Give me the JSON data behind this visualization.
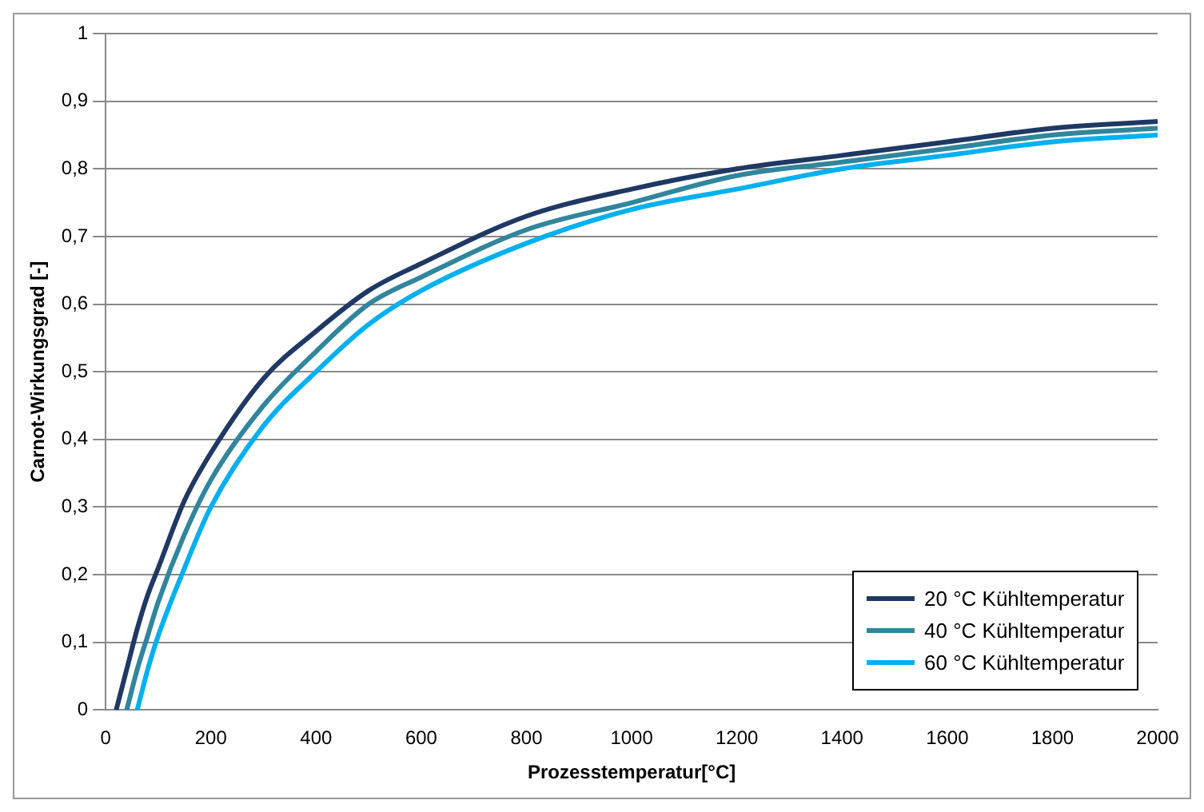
{
  "chart_data": {
    "type": "line",
    "xlabel": "Prozesstemperatur[°C]",
    "ylabel": "Carnot-Wirkungsgrad [-]",
    "xlim": [
      0,
      2000
    ],
    "xticks": [
      0,
      200,
      400,
      600,
      800,
      1000,
      1200,
      1400,
      1600,
      1800,
      2000
    ],
    "ylim": [
      0,
      1
    ],
    "yticks": [
      0,
      {
        "value": 0.1,
        "label": "0,1"
      },
      {
        "value": 0.2,
        "label": "0,2"
      },
      {
        "value": 0.3,
        "label": "0,3"
      },
      {
        "value": 0.4,
        "label": "0,4"
      },
      {
        "value": 0.5,
        "label": "0,5"
      },
      {
        "value": 0.6,
        "label": "0,6"
      },
      {
        "value": 0.7,
        "label": "0,7"
      },
      {
        "value": 0.8,
        "label": "0,8"
      },
      {
        "value": 0.9,
        "label": "0,9"
      },
      1
    ],
    "grid": "y",
    "legend": "bottom right",
    "marker": "none",
    "line_style": "solid",
    "series": [
      {
        "name": "20 °C Kühltemperatur",
        "color": "#1f3864",
        "x": [
          20,
          40,
          60,
          80,
          100,
          150,
          200,
          300,
          400,
          500,
          600,
          800,
          1000,
          1200,
          1400,
          1600,
          1800,
          2000
        ],
        "values": [
          0,
          0.06,
          0.12,
          0.17,
          0.21,
          0.31,
          0.38,
          0.49,
          0.56,
          0.62,
          0.66,
          0.73,
          0.77,
          0.8,
          0.82,
          0.84,
          0.86,
          0.87
        ]
      },
      {
        "name": "40 °C Kühltemperatur",
        "color": "#31859c",
        "x": [
          40,
          60,
          80,
          100,
          150,
          200,
          300,
          400,
          500,
          600,
          800,
          1000,
          1200,
          1400,
          1600,
          1800,
          2000
        ],
        "values": [
          0,
          0.06,
          0.11,
          0.16,
          0.26,
          0.34,
          0.45,
          0.53,
          0.6,
          0.64,
          0.71,
          0.75,
          0.79,
          0.81,
          0.83,
          0.85,
          0.86
        ]
      },
      {
        "name": "60 °C Kühltemperatur",
        "color": "#00b0f0",
        "x": [
          60,
          80,
          100,
          150,
          200,
          300,
          400,
          500,
          600,
          800,
          1000,
          1200,
          1400,
          1600,
          1800,
          2000
        ],
        "values": [
          0,
          0.06,
          0.11,
          0.21,
          0.3,
          0.42,
          0.5,
          0.57,
          0.62,
          0.69,
          0.74,
          0.77,
          0.8,
          0.82,
          0.84,
          0.85
        ]
      }
    ]
  }
}
